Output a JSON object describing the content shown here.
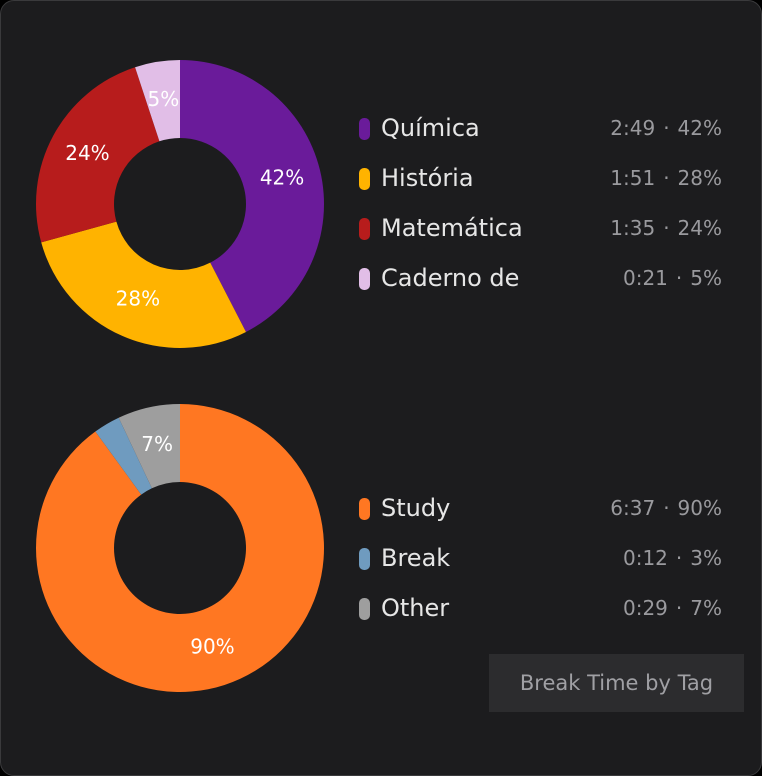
{
  "chart_data": [
    {
      "type": "donut",
      "categories": [
        "Química",
        "História",
        "Matemática",
        "Caderno de"
      ],
      "values": [
        42,
        28,
        24,
        5
      ],
      "value_labels": [
        "42%",
        "28%",
        "24%",
        "5%"
      ],
      "times": [
        "2:49",
        "1:51",
        "1:35",
        "0:21"
      ],
      "separator": "·",
      "colors": [
        "#6a1b9a",
        "#ffb300",
        "#b71c1c",
        "#e1bee7"
      ]
    },
    {
      "type": "donut",
      "categories": [
        "Study",
        "Break",
        "Other"
      ],
      "values": [
        90,
        3,
        7
      ],
      "value_labels": [
        "90%",
        "3%",
        "7%"
      ],
      "times": [
        "6:37",
        "0:12",
        "0:29"
      ],
      "separator": "·",
      "colors": [
        "#ff7722",
        "#6f9bbf",
        "#9e9e9e"
      ]
    }
  ],
  "button": {
    "label": "Break Time by Tag"
  }
}
